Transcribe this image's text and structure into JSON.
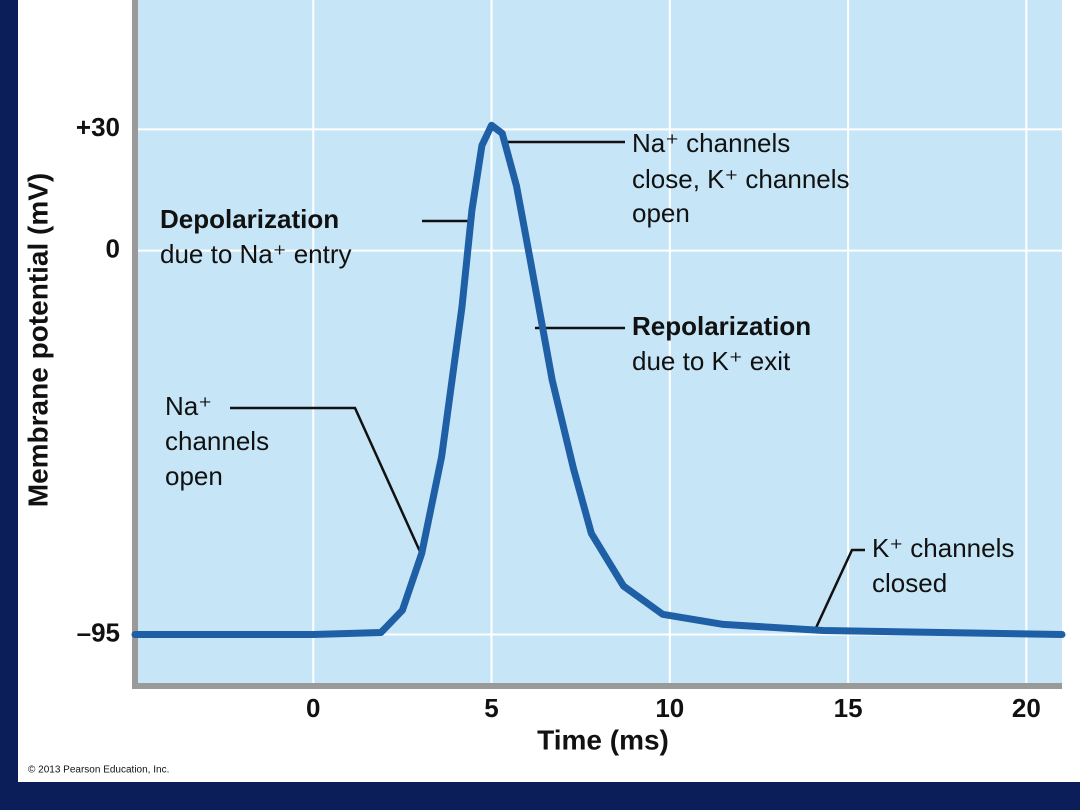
{
  "chart_data": {
    "type": "line",
    "x": [
      -5,
      0,
      1.9,
      2.5,
      3.04,
      3.6,
      4.17,
      4.45,
      4.73,
      5.0,
      5.3,
      5.7,
      6.1,
      6.7,
      7.3,
      7.8,
      8.7,
      9.8,
      11.5,
      14.3,
      21
    ],
    "values": [
      -95,
      -95,
      -94.5,
      -89,
      -75,
      -51,
      -14,
      10,
      26,
      31,
      29,
      16,
      -3,
      -32,
      -54,
      -70,
      -83,
      -90,
      -92.5,
      -94,
      -95
    ],
    "color": "#1f5fa6",
    "xlabel": "Time (ms)",
    "ylabel": "Membrane potential (mV)",
    "xlim": [
      -5,
      21
    ],
    "ylim": [
      -107,
      62
    ],
    "xticks": [
      0,
      5,
      10,
      15,
      20
    ],
    "yticks": [
      {
        "value": 30,
        "label": "+30"
      },
      0,
      {
        "value": -95,
        "label": "–95"
      }
    ],
    "grid": true,
    "annotations": [
      {
        "lines": [
          "Na⁺ channels",
          "close, K⁺ channels",
          "open"
        ]
      },
      {
        "lines": [
          "Depolarization",
          "due to Na⁺ entry"
        ]
      },
      {
        "lines": [
          "Repolarization",
          "due to K⁺ exit"
        ]
      },
      {
        "lines": [
          "Na⁺",
          "channels",
          "open"
        ]
      },
      {
        "lines": [
          "K⁺ channels",
          "closed"
        ]
      }
    ],
    "credit": "© 2013 Pearson Education, Inc."
  }
}
